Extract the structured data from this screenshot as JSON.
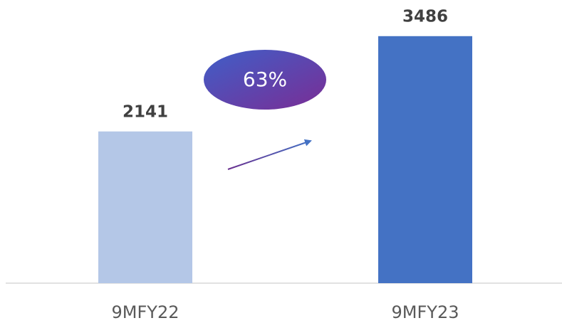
{
  "chart_data": {
    "type": "bar",
    "categories": [
      "9MFY22",
      "9MFY23"
    ],
    "values": [
      2141,
      3486
    ],
    "colors": [
      "#b4c7e7",
      "#4472c4"
    ],
    "ylim": [
      0,
      3500
    ],
    "annotation": "63%"
  }
}
